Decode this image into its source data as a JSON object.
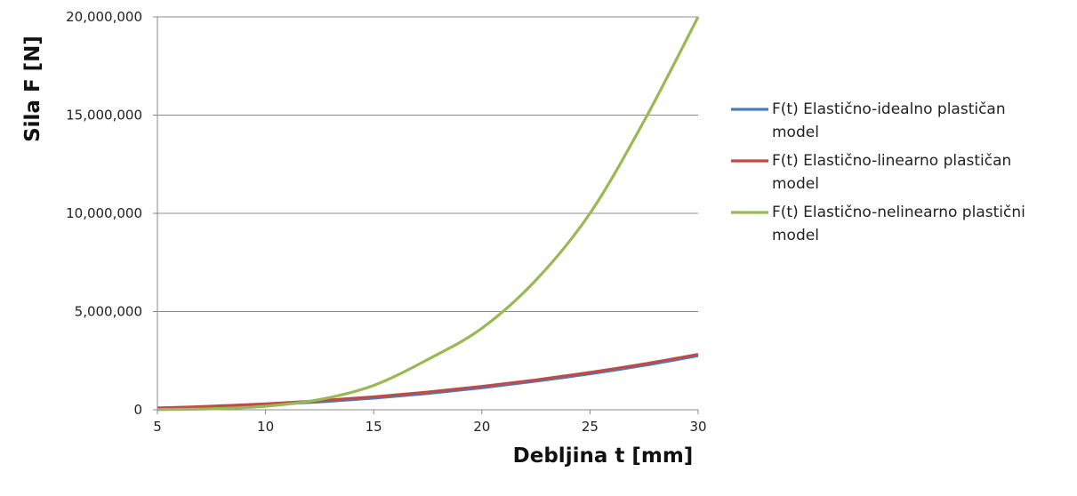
{
  "chart_data": {
    "type": "line",
    "xlabel": "Debljina t [mm]",
    "ylabel": "Sila F [N]",
    "xlim": [
      5,
      30
    ],
    "ylim": [
      0,
      20000000
    ],
    "x_ticks": [
      "5",
      "10",
      "15",
      "20",
      "25",
      "30"
    ],
    "y_ticks": [
      "0",
      "5,000,000",
      "10,000,000",
      "15,000,000",
      "20,000,000"
    ],
    "grid": "horizontal",
    "legend_position": "right",
    "x": [
      5,
      7.5,
      10,
      12.5,
      15,
      17.5,
      20,
      22.5,
      25,
      27.5,
      30
    ],
    "series": [
      {
        "name": "F(t) Elastično-idealno plastičan model",
        "color": "#4a7ebb",
        "values": [
          80000,
          150000,
          260000,
          400000,
          590000,
          830000,
          1120000,
          1460000,
          1830000,
          2260000,
          2750000
        ]
      },
      {
        "name": "F(t) Elastično-linearno plastičan model",
        "color": "#be4b48",
        "values": [
          90000,
          180000,
          300000,
          460000,
          660000,
          900000,
          1190000,
          1520000,
          1900000,
          2330000,
          2820000
        ]
      },
      {
        "name": "F(t) Elastično-nelinearno plastični model",
        "color": "#98b954",
        "values": [
          10000,
          50000,
          180000,
          520000,
          1240000,
          2560000,
          4150000,
          6600000,
          10000000,
          14700000,
          20000000
        ]
      }
    ]
  }
}
